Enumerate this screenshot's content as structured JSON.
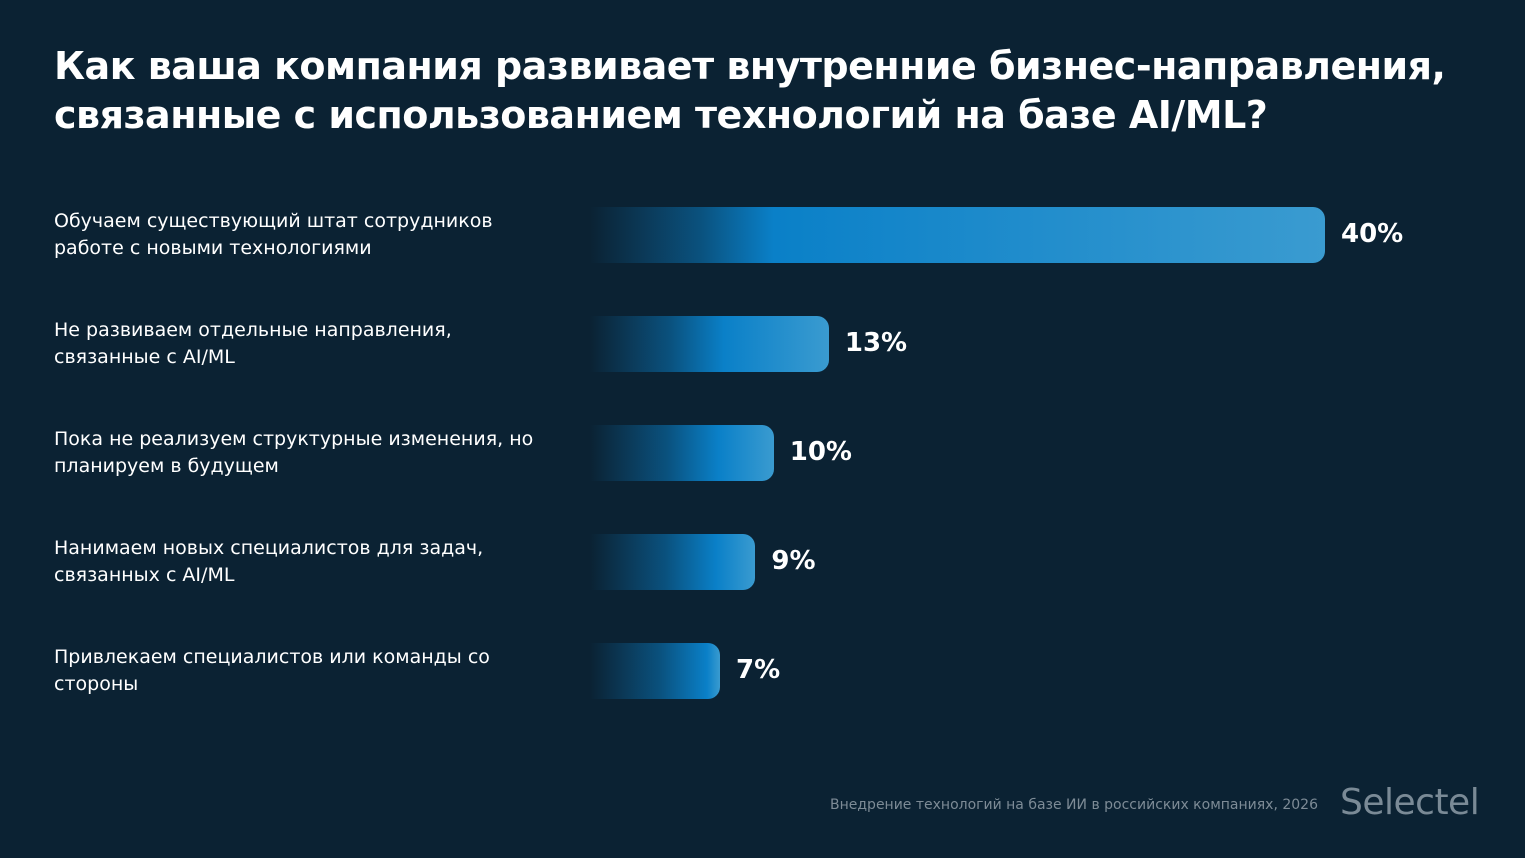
{
  "chart_data": {
    "type": "bar",
    "orientation": "horizontal",
    "title": "Как ваша компания развивает внутренние бизнес-направления, связанные с использованием технологий на базе AI/ML?",
    "categories": [
      "Обучаем существующий штат сотрудников работе с новыми технологиями",
      "Не развиваем отдельные направления, связанные с AI/ML",
      "Пока не реализуем структурные изменения, но планируем в будущем",
      "Нанимаем новых специалистов для задач, связанных с AI/ML",
      "Привлекаем специалистов или команды со стороны"
    ],
    "values": [
      40,
      13,
      10,
      9,
      7
    ],
    "value_labels": [
      "40%",
      "13%",
      "10%",
      "9%",
      "7%"
    ],
    "unit": "%",
    "grid": false,
    "colors": {
      "background": "#0b2233",
      "bar_mid": "#0a80c8",
      "bar_end": "#3a9bd0"
    }
  },
  "footer": {
    "source": "Внедрение технологий на базе ИИ в российских компаниях, 2026",
    "logo": "Selectel"
  }
}
